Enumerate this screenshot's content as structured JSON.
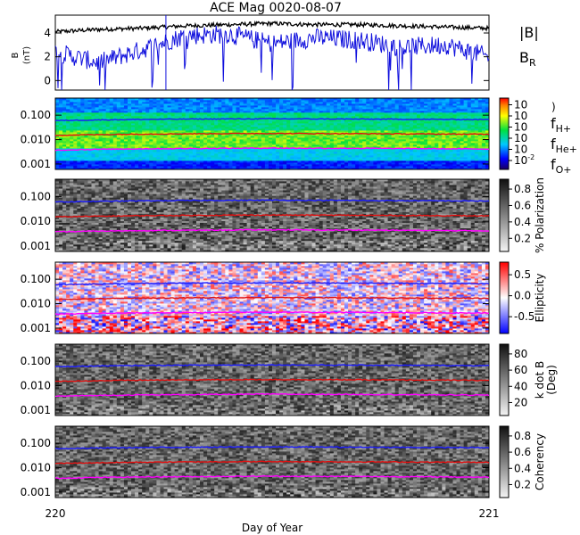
{
  "title": "ACE Mag 0020-08-07",
  "xlabel": "Day of Year",
  "x_ticks": [
    "220",
    "221"
  ],
  "legend": {
    "b_total": "|B|",
    "b_r_main": "B",
    "b_r_sub": "R",
    "f_h_main": "f",
    "f_h_sub": "H+",
    "f_he_main": "f",
    "f_he_sub": "He+",
    "f_o_main": "f",
    "f_o_sub": "O+"
  },
  "colors": {
    "b_total": "#000000",
    "b_r": "#1010dd",
    "f_h": "#1a1aff",
    "f_he": "#e01010",
    "f_o": "#ff00ff"
  },
  "chart_data": [
    {
      "type": "line",
      "panel": "magnetic-field",
      "ylabel_main": "B",
      "ylabel_unit": "(nT)",
      "yticks": [
        "0",
        "2",
        "4"
      ],
      "ylim": [
        -0.8,
        5.5
      ],
      "xlim": [
        220,
        221
      ],
      "series": [
        {
          "name": "|B|",
          "x": [
            220.0,
            220.1,
            220.2,
            220.3,
            220.4,
            220.5,
            220.6,
            220.7,
            220.8,
            220.9,
            221.0
          ],
          "values": [
            4.1,
            4.3,
            4.4,
            4.6,
            4.7,
            4.8,
            4.7,
            4.7,
            4.6,
            4.5,
            4.4
          ]
        },
        {
          "name": "BR",
          "x": [
            220.0,
            220.1,
            220.2,
            220.3,
            220.4,
            220.5,
            220.6,
            220.7,
            220.8,
            220.9,
            221.0
          ],
          "values": [
            2.4,
            1.5,
            2.6,
            3.8,
            3.9,
            3.1,
            3.6,
            3.4,
            2.8,
            3.0,
            2.0
          ]
        }
      ]
    },
    {
      "type": "heatmap",
      "panel": "power-spectrum",
      "scheme": "rainbow",
      "yticks": [
        "0.001",
        "0.010",
        "0.100"
      ],
      "colorbar_ticks": [
        "10-2",
        "10",
        "10",
        "10",
        "10",
        "10"
      ],
      "cb_ticks_main": [
        "10",
        "10",
        "10",
        "10",
        "10",
        "10"
      ],
      "cb_ticks_exp": [
        "-2",
        "",
        "",
        "",
        "",
        ""
      ]
    },
    {
      "type": "heatmap",
      "panel": "polarization",
      "scheme": "gray",
      "colorbar_label": "% Polarization",
      "yticks": [
        "0.001",
        "0.010",
        "0.100"
      ],
      "colorbar_ticks": [
        "0.2",
        "0.4",
        "0.6",
        "0.8"
      ]
    },
    {
      "type": "heatmap",
      "panel": "ellipticity",
      "scheme": "bwr",
      "colorbar_label": "Ellipticity",
      "yticks": [
        "0.001",
        "0.010",
        "0.100"
      ],
      "colorbar_ticks": [
        "-0.5",
        "0.0",
        "0.5"
      ]
    },
    {
      "type": "heatmap",
      "panel": "k-dot-b",
      "scheme": "gray",
      "colorbar_label": "k dot B",
      "colorbar_unit": "(Deg)",
      "yticks": [
        "0.001",
        "0.010",
        "0.100"
      ],
      "colorbar_ticks": [
        "20",
        "40",
        "60",
        "80"
      ]
    },
    {
      "type": "heatmap",
      "panel": "coherency",
      "scheme": "gray",
      "colorbar_label": "Coherency",
      "yticks": [
        "0.001",
        "0.010",
        "0.100"
      ],
      "colorbar_ticks": [
        "0.2",
        "0.4",
        "0.6",
        "0.8"
      ]
    }
  ],
  "cyclotron_lines": [
    {
      "name": "fH+",
      "values": [
        0.06,
        0.064,
        0.067,
        0.069,
        0.07,
        0.071,
        0.07,
        0.069,
        0.068,
        0.067,
        0.066
      ]
    },
    {
      "name": "fHe+",
      "values": [
        0.015,
        0.016,
        0.0168,
        0.0172,
        0.0176,
        0.0178,
        0.0176,
        0.0174,
        0.0171,
        0.0168,
        0.0165
      ]
    },
    {
      "name": "fO+",
      "values": [
        0.0037,
        0.004,
        0.0042,
        0.0043,
        0.0044,
        0.0045,
        0.0044,
        0.0044,
        0.0043,
        0.0042,
        0.0041
      ]
    }
  ]
}
